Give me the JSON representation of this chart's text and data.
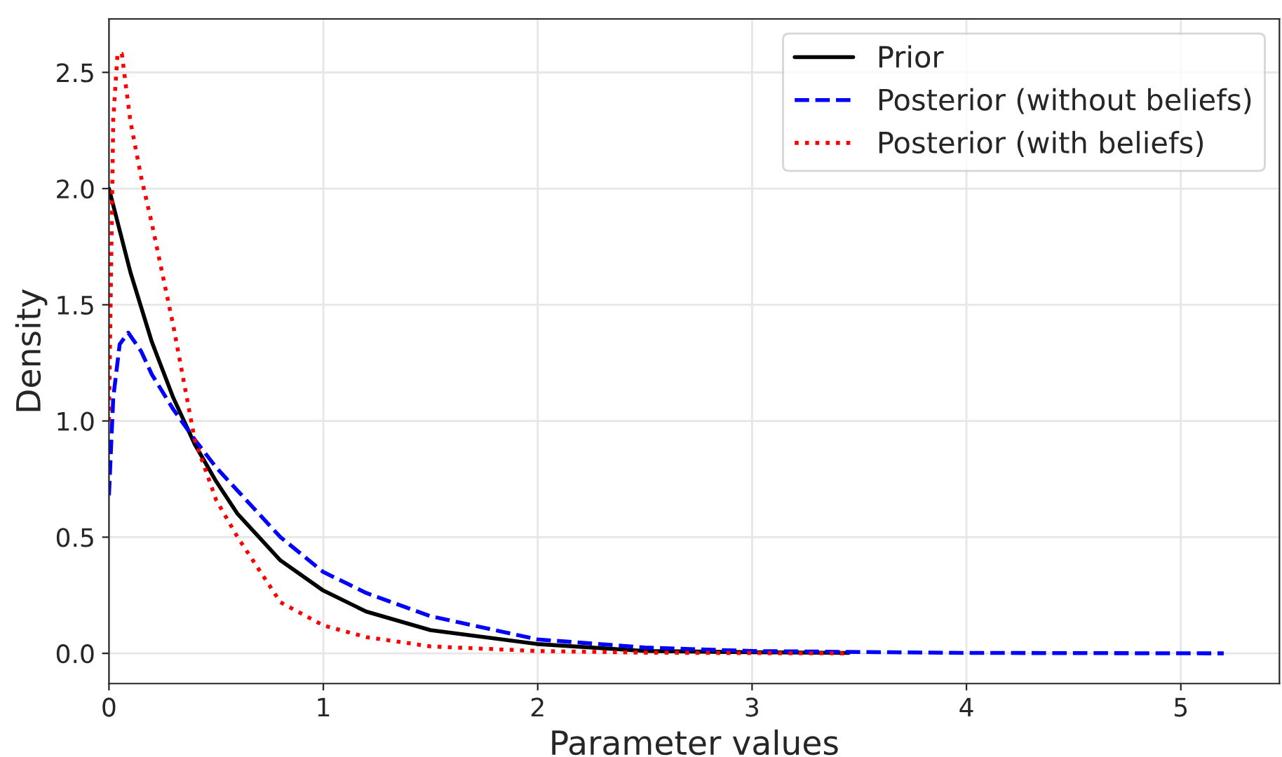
{
  "chart_data": {
    "type": "line",
    "xlabel": "Parameter values",
    "ylabel": "Density",
    "xlim": [
      0,
      5.46
    ],
    "ylim": [
      -0.13,
      2.73
    ],
    "xticks": [
      0,
      1,
      2,
      3,
      4,
      5
    ],
    "yticks": [
      {
        "value": 0,
        "label": "0.0"
      },
      {
        "value": 0.5,
        "label": "0.5"
      },
      {
        "value": 1,
        "label": "1.0"
      },
      {
        "value": 1.5,
        "label": "1.5"
      },
      {
        "value": 2,
        "label": "2.0"
      },
      {
        "value": 2.5,
        "label": "2.5"
      }
    ],
    "grid": true,
    "legend": "top right",
    "marker": "none",
    "series": [
      {
        "name": "Prior",
        "color": "#000000",
        "line_style": "solid",
        "x": [
          0,
          0.1,
          0.2,
          0.3,
          0.4,
          0.5,
          0.6,
          0.8,
          1.0,
          1.2,
          1.5,
          2.0,
          2.5,
          3.0,
          3.45
        ],
        "values": [
          2.0,
          1.64,
          1.34,
          1.1,
          0.9,
          0.74,
          0.6,
          0.4,
          0.27,
          0.18,
          0.1,
          0.04,
          0.01,
          0.005,
          0.002
        ]
      },
      {
        "name": "Posterior (without beliefs)",
        "color": "#0000ff",
        "line_style": "dashed",
        "x": [
          0,
          0.02,
          0.05,
          0.09,
          0.15,
          0.2,
          0.3,
          0.4,
          0.5,
          0.6,
          0.8,
          1.0,
          1.2,
          1.5,
          2.0,
          2.5,
          3.0,
          4.0,
          5.2
        ],
        "values": [
          0.68,
          1.1,
          1.33,
          1.38,
          1.3,
          1.2,
          1.05,
          0.92,
          0.8,
          0.7,
          0.5,
          0.35,
          0.26,
          0.16,
          0.06,
          0.025,
          0.01,
          0.002,
          0
        ]
      },
      {
        "name": "Posterior (with beliefs)",
        "color": "#ff0000",
        "line_style": "dotted",
        "x": [
          0,
          0.02,
          0.04,
          0.06,
          0.1,
          0.15,
          0.2,
          0.3,
          0.4,
          0.5,
          0.6,
          0.8,
          1.0,
          1.2,
          1.5,
          2.0,
          2.5,
          3.0,
          3.45
        ],
        "values": [
          1.0,
          2.3,
          2.58,
          2.58,
          2.29,
          2.05,
          1.85,
          1.41,
          0.92,
          0.66,
          0.5,
          0.22,
          0.12,
          0.07,
          0.03,
          0.01,
          0.003,
          0.001,
          0
        ]
      }
    ]
  }
}
